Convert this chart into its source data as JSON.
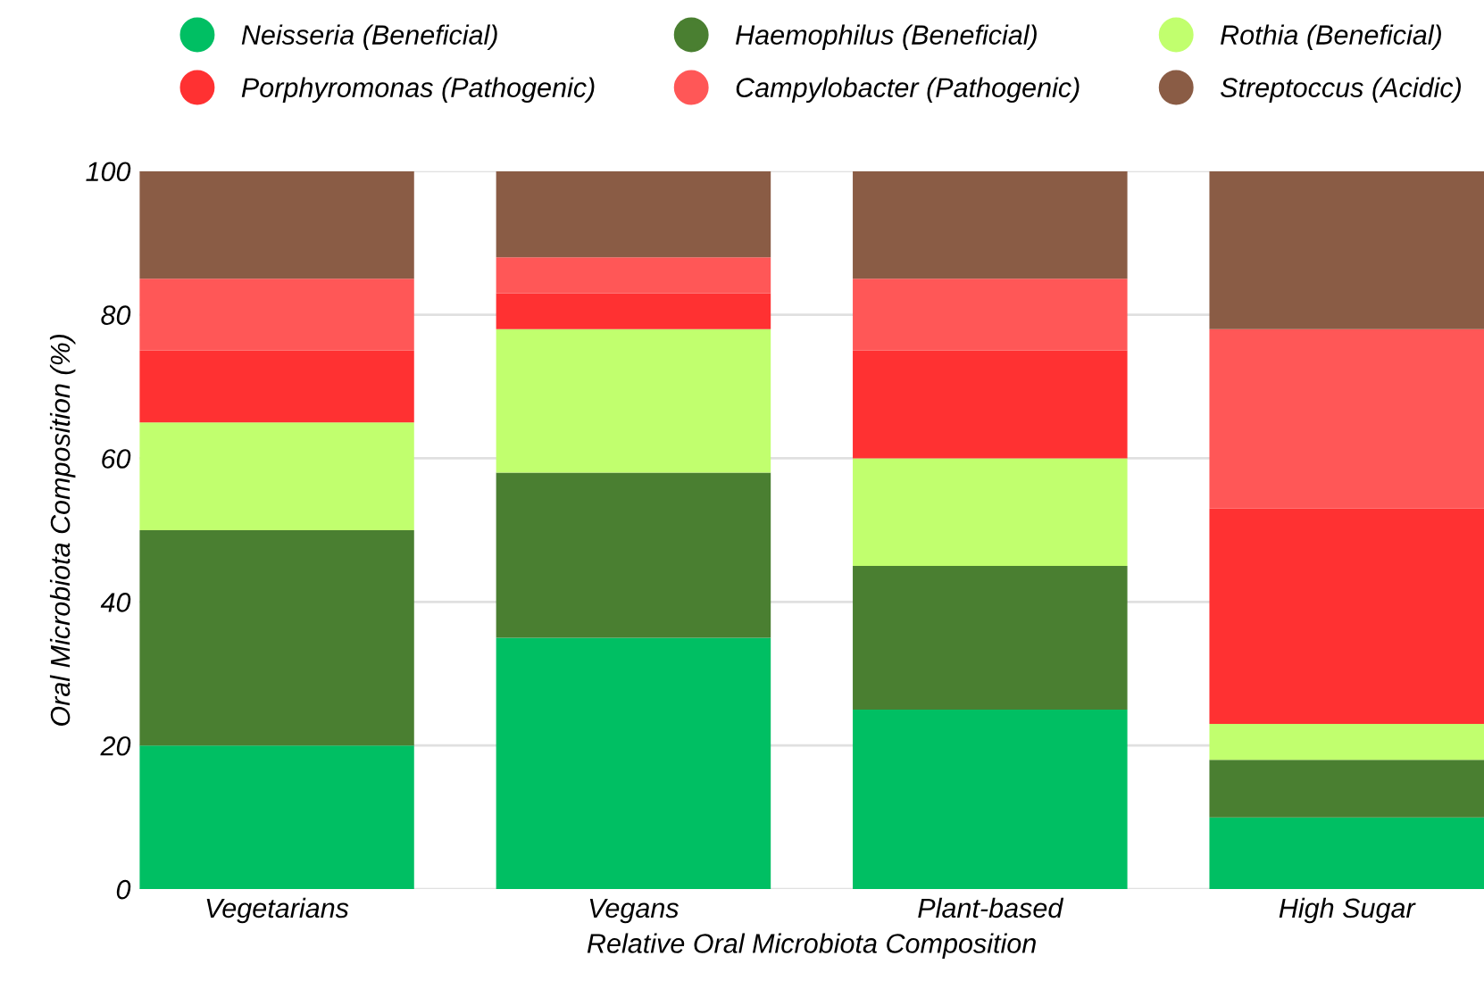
{
  "chart_data": {
    "type": "bar",
    "stacked": true,
    "xlabel": "Relative Oral Microbiota Composition",
    "ylabel": "Oral Microbiota Composition (%)",
    "categories": [
      "Vegetarians",
      "Vegans",
      "Plant-based",
      "High Sugar"
    ],
    "series": [
      {
        "name": "Neisseria (Beneficial)",
        "color": "#00bf63",
        "values": [
          20,
          35,
          25,
          10
        ]
      },
      {
        "name": "Haemophilus (Beneficial)",
        "color": "#4a7f31",
        "values": [
          30,
          23,
          20,
          8
        ]
      },
      {
        "name": "Rothia (Beneficial)",
        "color": "#c1ff6e",
        "values": [
          15,
          20,
          15,
          5
        ]
      },
      {
        "name": "Porphyromonas (Pathogenic)",
        "color": "#ff3132",
        "values": [
          10,
          5,
          15,
          30
        ]
      },
      {
        "name": "Campylobacter (Pathogenic)",
        "color": "#ff5757",
        "values": [
          10,
          5,
          10,
          25
        ]
      },
      {
        "name": "Streptoccus (Acidic)",
        "color": "#8a5c45",
        "values": [
          15,
          12,
          15,
          22
        ]
      }
    ],
    "ylim": [
      0,
      100
    ],
    "yticks": [
      0,
      20,
      40,
      60,
      80,
      100
    ],
    "grid": "y",
    "legend": "top"
  }
}
